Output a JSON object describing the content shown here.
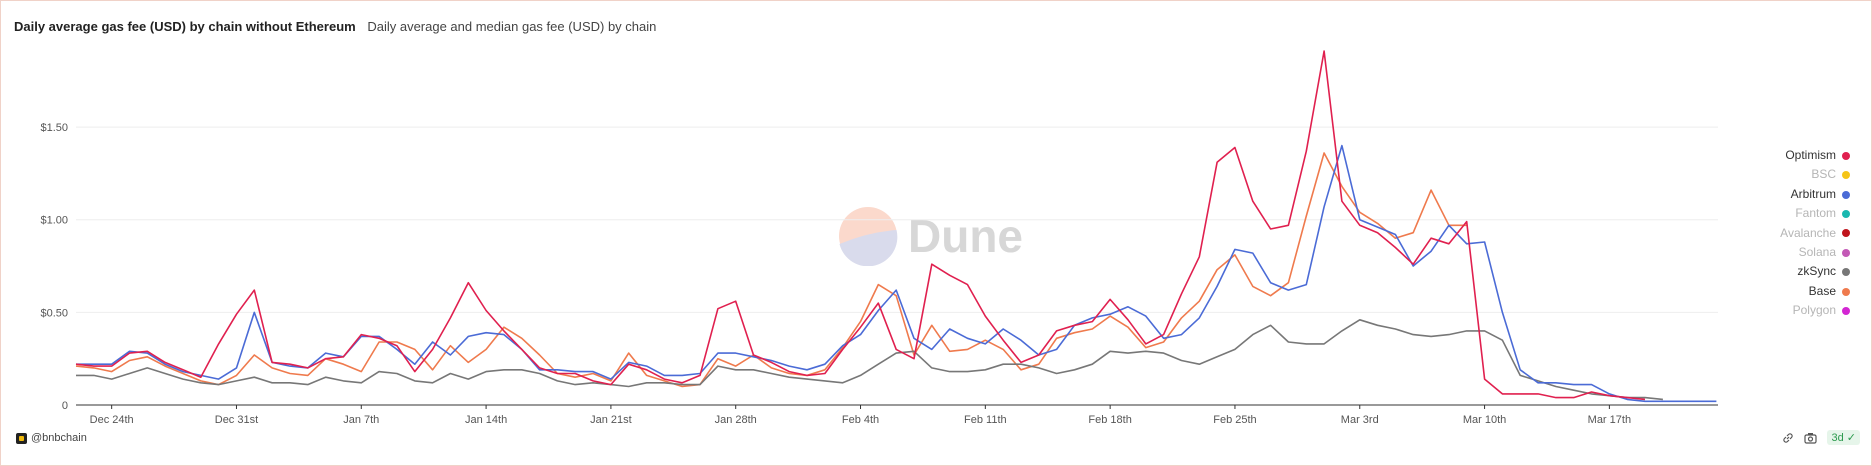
{
  "header": {
    "title": "Daily average gas fee (USD) by chain without Ethereum",
    "subtitle": "Daily average and median gas fee (USD) by chain"
  },
  "watermark": {
    "text": "Dune"
  },
  "footer": {
    "handle": "@bnbchain",
    "refresh": "3d",
    "icons": [
      "link-icon",
      "camera-icon"
    ]
  },
  "legend": [
    {
      "label": "Optimism",
      "color": "#e0204f",
      "active": true
    },
    {
      "label": "BSC",
      "color": "#f5c518",
      "active": false
    },
    {
      "label": "Arbitrum",
      "color": "#4b6bd6",
      "active": true
    },
    {
      "label": "Fantom",
      "color": "#1ab8b0",
      "active": false
    },
    {
      "label": "Avalanche",
      "color": "#c0141c",
      "active": false
    },
    {
      "label": "Solana",
      "color": "#c359b6",
      "active": false
    },
    {
      "label": "zkSync",
      "color": "#777777",
      "active": true
    },
    {
      "label": "Base",
      "color": "#ef7a4d",
      "active": true
    },
    {
      "label": "Polygon",
      "color": "#d326d3",
      "active": false
    }
  ],
  "chart_data": {
    "type": "line",
    "x_start": "Dec 22",
    "x": [
      "Dec 22",
      "Dec 23",
      "Dec 24",
      "Dec 25",
      "Dec 26",
      "Dec 27",
      "Dec 28",
      "Dec 29",
      "Dec 30",
      "Dec 31",
      "Jan 1",
      "Jan 2",
      "Jan 3",
      "Jan 4",
      "Jan 5",
      "Jan 6",
      "Jan 7",
      "Jan 8",
      "Jan 9",
      "Jan 10",
      "Jan 11",
      "Jan 12",
      "Jan 13",
      "Jan 14",
      "Jan 15",
      "Jan 16",
      "Jan 17",
      "Jan 18",
      "Jan 19",
      "Jan 20",
      "Jan 21",
      "Jan 22",
      "Jan 23",
      "Jan 24",
      "Jan 25",
      "Jan 26",
      "Jan 27",
      "Jan 28",
      "Jan 29",
      "Jan 30",
      "Jan 31",
      "Feb 1",
      "Feb 2",
      "Feb 3",
      "Feb 4",
      "Feb 5",
      "Feb 6",
      "Feb 7",
      "Feb 8",
      "Feb 9",
      "Feb 10",
      "Feb 11",
      "Feb 12",
      "Feb 13",
      "Feb 14",
      "Feb 15",
      "Feb 16",
      "Feb 17",
      "Feb 18",
      "Feb 19",
      "Feb 20",
      "Feb 21",
      "Feb 22",
      "Feb 23",
      "Feb 24",
      "Feb 25",
      "Feb 26",
      "Feb 27",
      "Feb 28",
      "Feb 29",
      "Mar 1",
      "Mar 2",
      "Mar 3",
      "Mar 4",
      "Mar 5",
      "Mar 6",
      "Mar 7",
      "Mar 8",
      "Mar 9",
      "Mar 10",
      "Mar 11",
      "Mar 12",
      "Mar 13",
      "Mar 14",
      "Mar 15",
      "Mar 16",
      "Mar 17",
      "Mar 18",
      "Mar 19",
      "Mar 20",
      "Mar 21",
      "Mar 22",
      "Mar 23"
    ],
    "x_ticks": [
      "Dec 24th",
      "Dec 31st",
      "Jan 7th",
      "Jan 14th",
      "Jan 21st",
      "Jan 28th",
      "Feb 4th",
      "Feb 11th",
      "Feb 18th",
      "Feb 25th",
      "Mar 3rd",
      "Mar 10th",
      "Mar 17th"
    ],
    "y_ticks": [
      {
        "value": 0,
        "label": "0"
      },
      {
        "value": 0.5,
        "label": "$0.50"
      },
      {
        "value": 1.0,
        "label": "$1.00"
      },
      {
        "value": 1.5,
        "label": "$1.50"
      }
    ],
    "ylim": [
      0,
      1.97
    ],
    "grid": true,
    "legend_position": "right",
    "series": [
      {
        "name": "Optimism",
        "color": "#e0204f",
        "values": [
          0.22,
          0.21,
          0.21,
          0.28,
          0.29,
          0.23,
          0.19,
          0.15,
          0.33,
          0.49,
          0.62,
          0.23,
          0.22,
          0.2,
          0.25,
          0.26,
          0.38,
          0.36,
          0.32,
          0.18,
          0.3,
          0.47,
          0.66,
          0.51,
          0.4,
          0.3,
          0.2,
          0.17,
          0.17,
          0.13,
          0.11,
          0.22,
          0.19,
          0.14,
          0.12,
          0.16,
          0.52,
          0.56,
          0.27,
          0.23,
          0.18,
          0.16,
          0.17,
          0.3,
          0.42,
          0.55,
          0.3,
          0.25,
          0.76,
          0.7,
          0.65,
          0.48,
          0.35,
          0.23,
          0.27,
          0.4,
          0.43,
          0.45,
          0.57,
          0.46,
          0.33,
          0.38,
          0.6,
          0.8,
          1.31,
          1.39,
          1.1,
          0.95,
          0.97,
          1.37,
          1.91,
          1.1,
          0.97,
          0.93,
          0.85,
          0.76,
          0.9,
          0.87,
          0.99,
          0.14,
          0.06,
          0.06,
          0.06,
          0.04,
          0.04,
          0.07,
          0.05,
          0.04,
          0.03,
          null,
          null,
          null,
          null
        ]
      },
      {
        "name": "Arbitrum",
        "color": "#4b6bd6",
        "values": [
          0.22,
          0.22,
          0.22,
          0.29,
          0.28,
          0.22,
          0.18,
          0.16,
          0.14,
          0.2,
          0.5,
          0.23,
          0.21,
          0.2,
          0.28,
          0.26,
          0.37,
          0.37,
          0.3,
          0.22,
          0.34,
          0.27,
          0.37,
          0.39,
          0.38,
          0.3,
          0.19,
          0.19,
          0.18,
          0.18,
          0.14,
          0.23,
          0.21,
          0.16,
          0.16,
          0.17,
          0.28,
          0.28,
          0.26,
          0.24,
          0.21,
          0.19,
          0.22,
          0.32,
          0.38,
          0.51,
          0.62,
          0.36,
          0.3,
          0.41,
          0.36,
          0.33,
          0.41,
          0.35,
          0.27,
          0.3,
          0.43,
          0.47,
          0.49,
          0.53,
          0.48,
          0.36,
          0.38,
          0.47,
          0.64,
          0.84,
          0.82,
          0.66,
          0.62,
          0.65,
          1.07,
          1.4,
          1.0,
          0.96,
          0.92,
          0.75,
          0.83,
          0.97,
          0.87,
          0.88,
          0.5,
          0.19,
          0.12,
          0.12,
          0.11,
          0.11,
          0.06,
          0.03,
          0.02,
          0.02,
          0.02,
          0.02,
          0.02
        ]
      },
      {
        "name": "zkSync",
        "color": "#777777",
        "values": [
          0.16,
          0.16,
          0.14,
          0.17,
          0.2,
          0.17,
          0.14,
          0.12,
          0.11,
          0.13,
          0.15,
          0.12,
          0.12,
          0.11,
          0.15,
          0.13,
          0.12,
          0.18,
          0.17,
          0.13,
          0.12,
          0.17,
          0.14,
          0.18,
          0.19,
          0.19,
          0.17,
          0.13,
          0.11,
          0.12,
          0.11,
          0.1,
          0.12,
          0.12,
          0.11,
          0.11,
          0.21,
          0.19,
          0.19,
          0.17,
          0.15,
          0.14,
          0.13,
          0.12,
          0.16,
          0.22,
          0.28,
          0.29,
          0.2,
          0.18,
          0.18,
          0.19,
          0.22,
          0.22,
          0.2,
          0.17,
          0.19,
          0.22,
          0.29,
          0.28,
          0.29,
          0.28,
          0.24,
          0.22,
          0.26,
          0.3,
          0.38,
          0.43,
          0.34,
          0.33,
          0.33,
          0.4,
          0.46,
          0.43,
          0.41,
          0.38,
          0.37,
          0.38,
          0.4,
          0.4,
          0.35,
          0.16,
          0.13,
          0.1,
          0.08,
          0.06,
          0.05,
          0.04,
          0.04,
          0.03,
          null,
          null,
          null
        ]
      },
      {
        "name": "Base",
        "color": "#ef7a4d",
        "values": [
          0.21,
          0.2,
          0.18,
          0.24,
          0.26,
          0.21,
          0.17,
          0.13,
          0.11,
          0.16,
          0.27,
          0.2,
          0.17,
          0.16,
          0.25,
          0.22,
          0.18,
          0.34,
          0.34,
          0.3,
          0.19,
          0.32,
          0.23,
          0.3,
          0.42,
          0.36,
          0.27,
          0.17,
          0.15,
          0.17,
          0.13,
          0.28,
          0.16,
          0.13,
          0.1,
          0.11,
          0.25,
          0.21,
          0.27,
          0.2,
          0.17,
          0.16,
          0.19,
          0.31,
          0.45,
          0.65,
          0.59,
          0.27,
          0.43,
          0.29,
          0.3,
          0.35,
          0.3,
          0.19,
          0.22,
          0.36,
          0.39,
          0.41,
          0.48,
          0.42,
          0.31,
          0.34,
          0.47,
          0.56,
          0.73,
          0.81,
          0.64,
          0.59,
          0.66,
          1.02,
          1.36,
          1.18,
          1.04,
          0.98,
          0.9,
          0.93,
          1.16,
          0.97,
          0.97,
          null,
          null,
          null,
          null,
          null,
          null,
          null,
          null,
          null,
          null,
          null,
          null,
          null,
          null
        ]
      }
    ]
  }
}
